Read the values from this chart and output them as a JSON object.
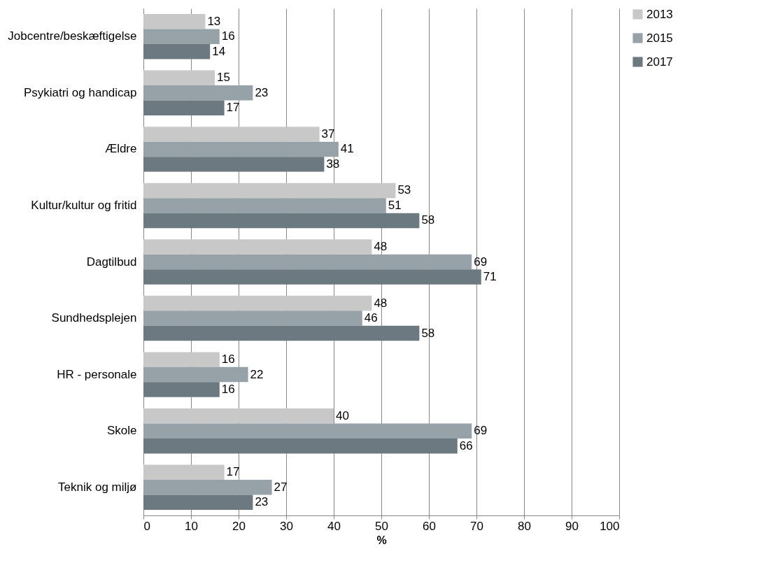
{
  "chart_data": {
    "type": "bar",
    "orientation": "horizontal",
    "xlabel": "%",
    "categories": [
      "Jobcentre/beskæftigelse",
      "Psykiatri og handicap",
      "Ældre",
      "Kultur/kultur og fritid",
      "Dagtilbud",
      "Sundhedsplejen",
      "HR - personale",
      "Skole",
      "Teknik og miljø"
    ],
    "series": [
      {
        "name": "2013",
        "color": "#c8c8c8",
        "values": [
          13,
          15,
          37,
          53,
          48,
          48,
          16,
          40,
          17
        ]
      },
      {
        "name": "2015",
        "color": "#97a2a8",
        "values": [
          16,
          23,
          41,
          51,
          69,
          46,
          22,
          69,
          27
        ]
      },
      {
        "name": "2017",
        "color": "#6c7980",
        "values": [
          14,
          17,
          38,
          58,
          71,
          58,
          16,
          66,
          23
        ]
      }
    ],
    "xlim": [
      0,
      100
    ],
    "xticks": [
      0,
      10,
      20,
      30,
      40,
      50,
      60,
      70,
      80,
      90,
      100
    ],
    "grid": "x",
    "legend": "right",
    "data_labels": true
  }
}
